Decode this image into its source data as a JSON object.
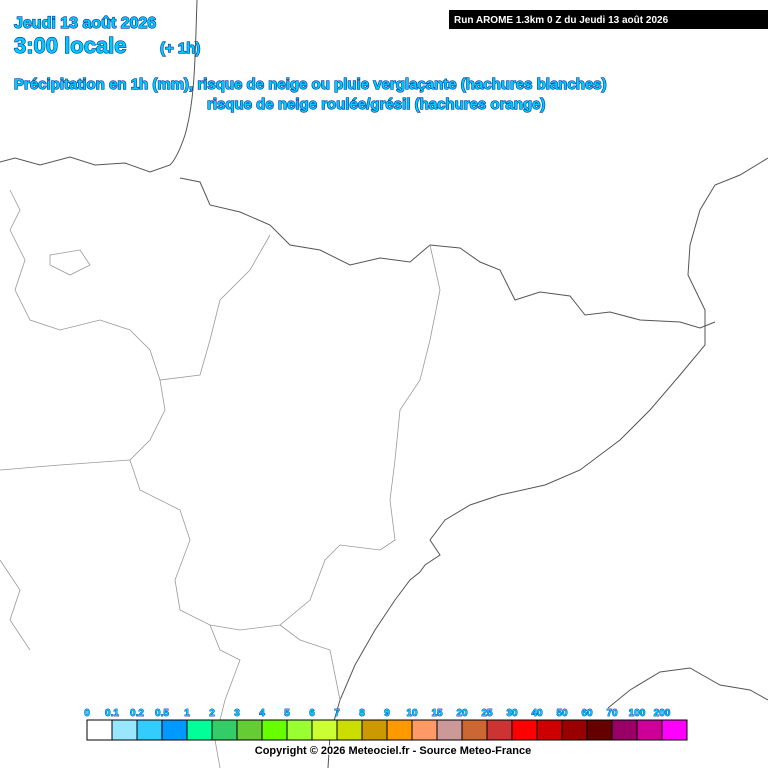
{
  "header": {
    "date": "Jeudi 13 août 2026",
    "time": "3:00 locale",
    "offset": "(+ 1h)",
    "run": "Run AROME 1.3km 0 Z du Jeudi 13 août 2026",
    "line1": "Précipitation en 1h (mm), risque de neige ou pluie verglaçante (hachures blanches)",
    "line2": "risque de neige roulée/grésil (hachures orange)"
  },
  "legend": {
    "values": [
      0,
      0.1,
      0.2,
      0.5,
      1,
      2,
      3,
      4,
      5,
      6,
      7,
      8,
      9,
      10,
      15,
      20,
      25,
      30,
      40,
      50,
      60,
      70,
      100,
      200
    ],
    "colors": [
      "#ffffff",
      "#99e6ff",
      "#33ccff",
      "#0099ff",
      "#00ff99",
      "#33cc66",
      "#66cc33",
      "#66ff00",
      "#99ff33",
      "#ccff33",
      "#ccdd00",
      "#cc9900",
      "#ff9900",
      "#ff9966",
      "#cc9999",
      "#cc6633",
      "#cc3333",
      "#ff0000",
      "#cc0000",
      "#990000",
      "#660000",
      "#990066",
      "#cc0099",
      "#ff00ff"
    ]
  },
  "footer": {
    "copyright": "Copyright © 2026 Meteociel.fr - Source Meteo-France"
  }
}
